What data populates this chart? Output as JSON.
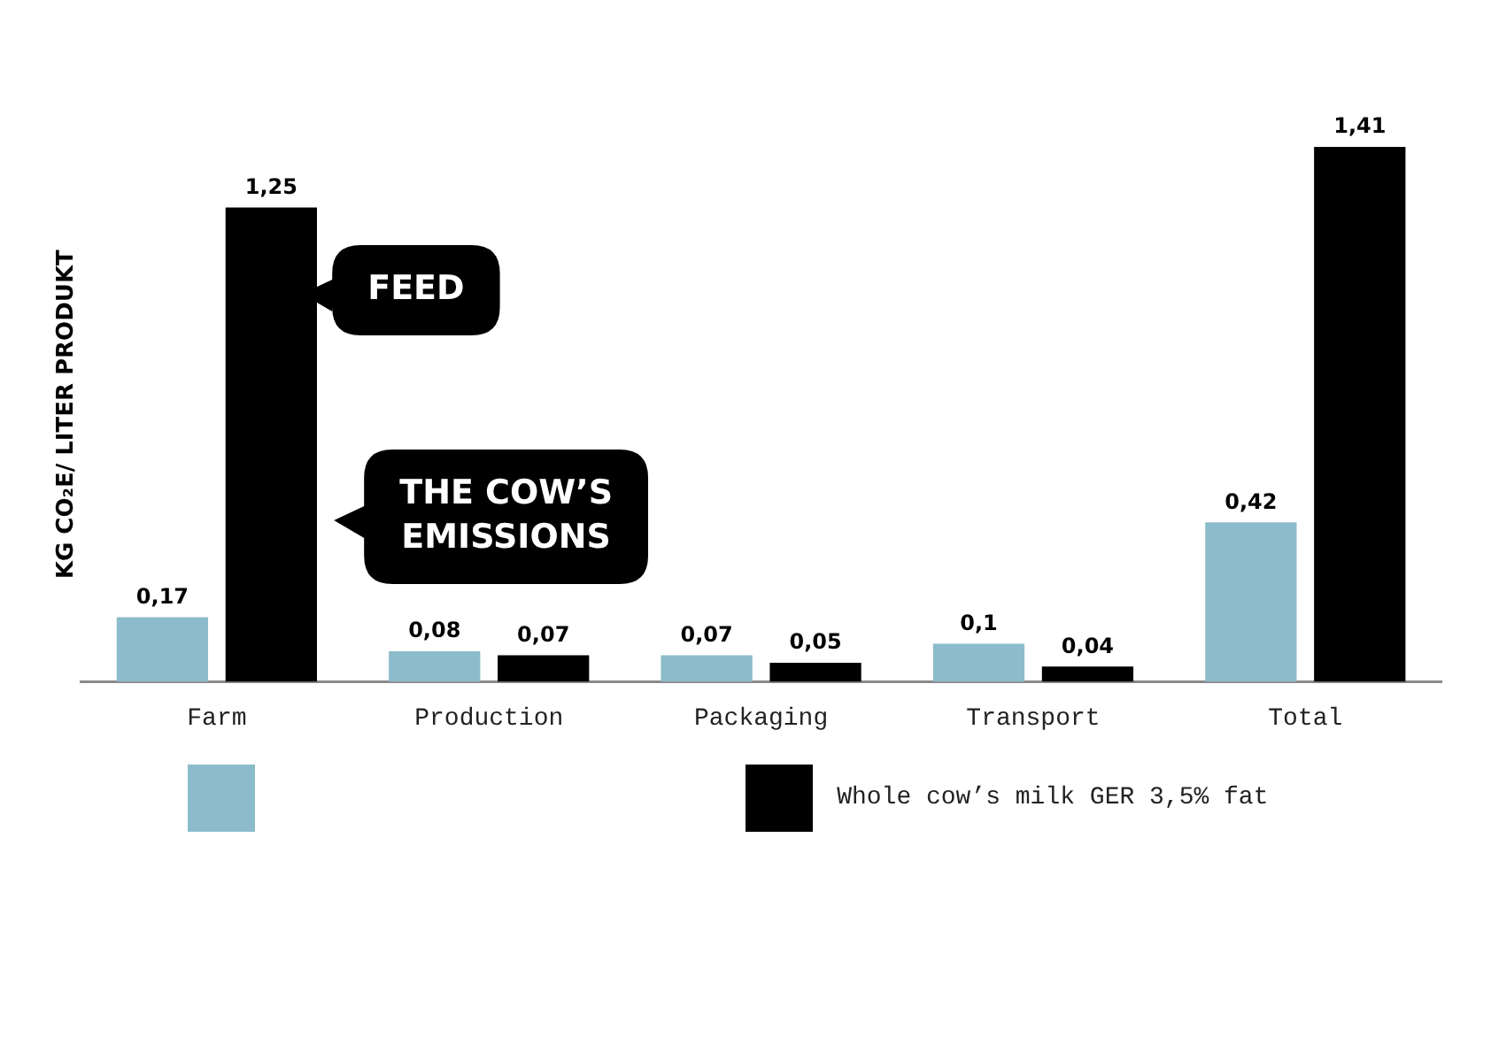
{
  "chart_data": {
    "type": "bar",
    "ylabel": "KG CO₂E/ LITER PRODUKT",
    "categories": [
      "Farm",
      "Production",
      "Packaging",
      "Transport",
      "Total"
    ],
    "series": [
      {
        "color": "#8cbccb",
        "values": [
          0.17,
          0.08,
          0.07,
          0.1,
          0.42
        ],
        "value_labels": [
          "0,17",
          "0,08",
          "0,07",
          "0,1",
          "0,42"
        ]
      },
      {
        "name": "Whole cow’s milk GER 3,5% fat",
        "color": "#000000",
        "values": [
          1.25,
          0.07,
          0.05,
          0.04,
          1.41
        ],
        "value_labels": [
          "1,25",
          "0,07",
          "0,05",
          "0,04",
          "1,41"
        ]
      }
    ],
    "ylim": [
      0,
      1.41
    ],
    "tick_labels": "x",
    "grid": false,
    "legend": "bottom",
    "annotations": [
      "FEED",
      "THE COW’S EMISSIONS"
    ]
  }
}
